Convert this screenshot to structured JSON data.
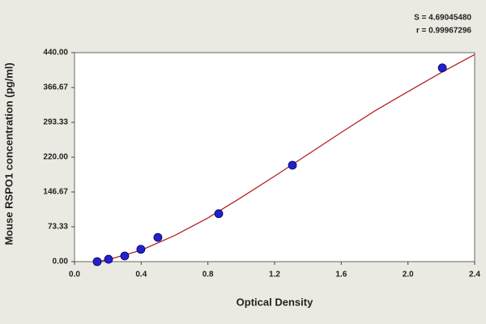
{
  "chart_data": {
    "type": "scatter",
    "xlabel": "Optical Density",
    "ylabel": "Mouse RSPO1 concentration (pg/ml)",
    "annotations": [
      "S = 4.69045480",
      "r = 0.99967296"
    ],
    "xlim": [
      0,
      2.4
    ],
    "xticks": [
      {
        "value": 0,
        "label": "0.0"
      },
      0.4,
      0.8,
      1.2,
      1.6,
      {
        "value": 2,
        "label": "2.0"
      },
      2.4
    ],
    "ylim": [
      0,
      440
    ],
    "yticks": [
      {
        "value": 0,
        "label": "0.00"
      },
      {
        "value": 73.33,
        "label": "73.33"
      },
      {
        "value": 146.67,
        "label": "146.67"
      },
      {
        "value": 220,
        "label": "220.00"
      },
      {
        "value": 293.33,
        "label": "293.33"
      },
      {
        "value": 366.67,
        "label": "366.67"
      },
      {
        "value": 440,
        "label": "440.00"
      }
    ],
    "points": {
      "color": "#2222cc",
      "x": [
        0.136,
        0.204,
        0.301,
        0.398,
        0.5,
        0.865,
        1.307,
        2.206
      ],
      "y": [
        0,
        5,
        12,
        26,
        51,
        101,
        203,
        408
      ]
    },
    "curve": {
      "color": "#b22222",
      "x": [
        0.13,
        0.2,
        0.4,
        0.6,
        0.8,
        1.0,
        1.2,
        1.4,
        1.6,
        1.8,
        2.0,
        2.2,
        2.4
      ],
      "y": [
        0,
        4,
        24,
        55,
        92,
        135,
        180,
        226,
        272,
        317,
        358,
        398,
        436
      ]
    }
  }
}
